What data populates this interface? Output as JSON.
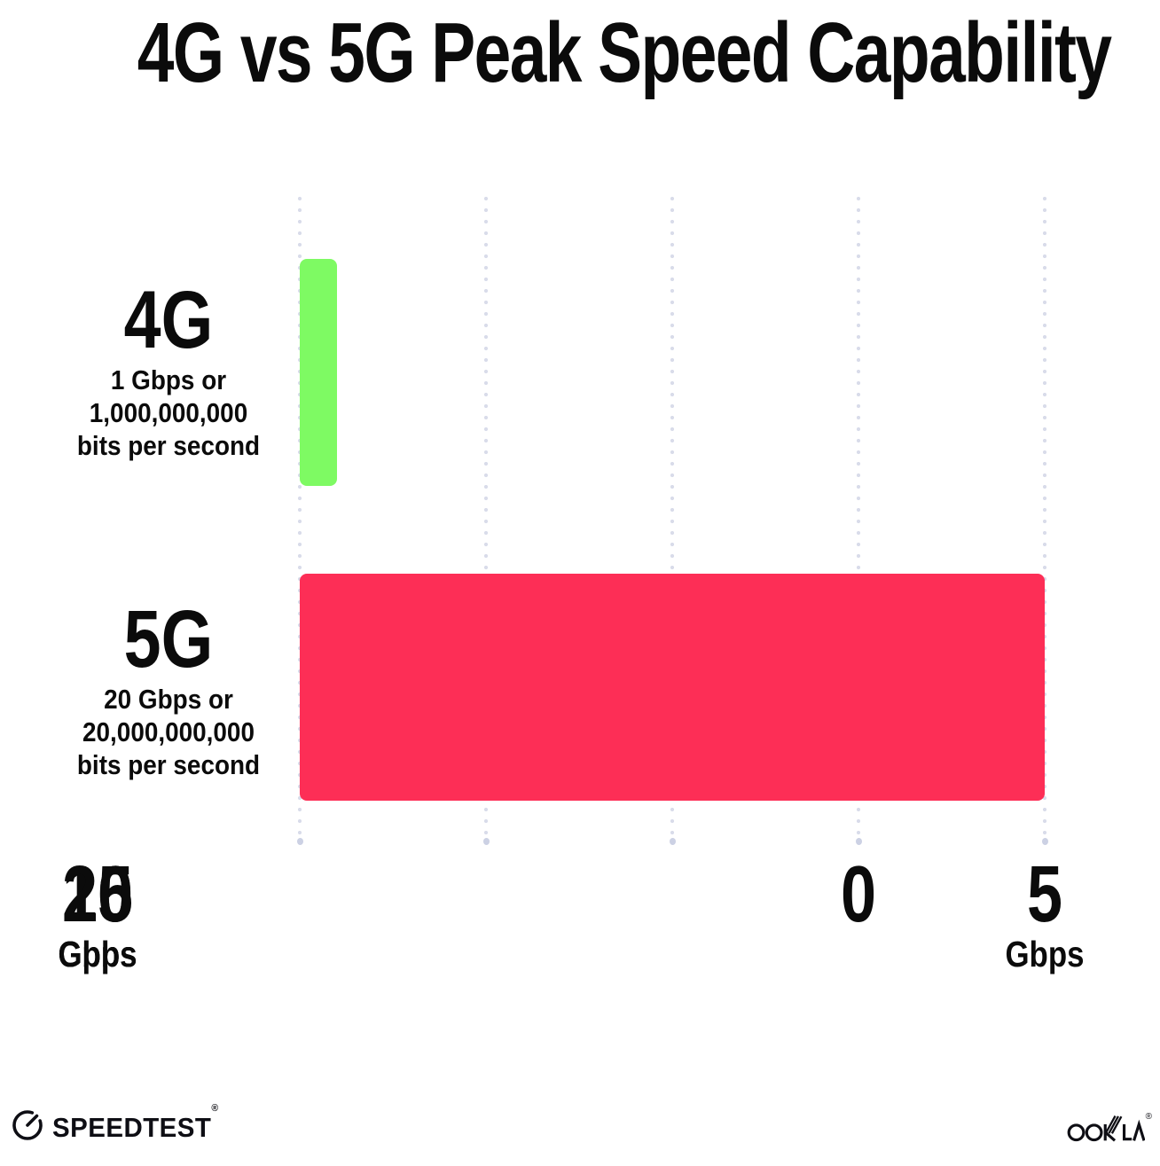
{
  "title": "4G vs 5G Peak Speed Capability",
  "chart_data": {
    "type": "bar",
    "orientation": "horizontal",
    "title": "4G vs 5G Peak Speed Capability",
    "categories": [
      "4G",
      "5G"
    ],
    "values": [
      1,
      20
    ],
    "value_unit": "Gbps",
    "xlim": [
      0,
      20
    ],
    "xlabel": "",
    "ylabel": "",
    "grid": "dotted-vertical",
    "legend": "none",
    "bar_colors": [
      "#7efa63",
      "#fd2e56"
    ],
    "series_labels": [
      {
        "name": "4G",
        "sublabel_lines": [
          "1 Gbps or",
          "1,000,000,000",
          "bits per second"
        ]
      },
      {
        "name": "5G",
        "sublabel_lines": [
          "20 Gbps or",
          "20,000,000,000",
          "bits per second"
        ]
      }
    ],
    "x_ticks": [
      {
        "value": "0",
        "unit": ""
      },
      {
        "value": "5",
        "unit": "Gbps"
      },
      {
        "value": "10",
        "unit": "Gpbs"
      },
      {
        "value": "15",
        "unit": "Gbps"
      },
      {
        "value": "20",
        "unit": "Gbps"
      }
    ]
  },
  "colors": {
    "background": "#ffffff",
    "bar_4g_green": "#7efa63",
    "bar_5g_pink": "#fd2e56",
    "gridline": "#d9dcea",
    "text": "#0b0b0b"
  },
  "icons": {
    "speedtest_gauge": "gauge-icon",
    "ookla_wordmark": "ookla-logo-icon"
  },
  "footer": {
    "speedtest_label": "SPEEDTEST",
    "speedtest_reg": "®",
    "ookla_label": "OOKLA",
    "ookla_reg": "®"
  }
}
